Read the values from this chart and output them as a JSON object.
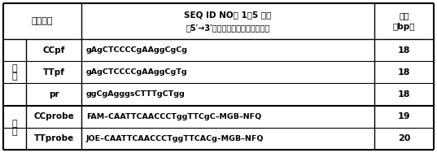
{
  "header_col2": "引物探针",
  "header_col3_line1": "SEQ ID NO： 1～5 序列",
  "header_col3_line2": "（5′→3′，包括探针荧光标记基团）",
  "rows": [
    {
      "name": "CCpf",
      "sequence": "gAgCTCCCCgAAggCgCg",
      "length": "18"
    },
    {
      "name": "TTpf",
      "sequence": "gAgCTCCCCgAAggCgTg",
      "length": "18"
    },
    {
      "name": "pr",
      "sequence": "ggCgAgggsCTTTgCTgg",
      "length": "18"
    },
    {
      "name": "CCprobe",
      "sequence": "FAM–CAATTCAACCCTggTTCgC–MGB–NFQ",
      "length": "19"
    },
    {
      "name": "TTprobe",
      "sequence": "JOE–CAATTCAACCCTggTTCACg–MGB–NFQ",
      "length": "20"
    }
  ],
  "group_primer": "引物",
  "group_probe": "探针",
  "len_hdr_line1": "长度",
  "len_hdr_line2": "（bp）",
  "bg_color": "#ffffff",
  "text_color": "#000000",
  "fig_width": 5.37,
  "fig_height": 1.88,
  "dpi": 100
}
